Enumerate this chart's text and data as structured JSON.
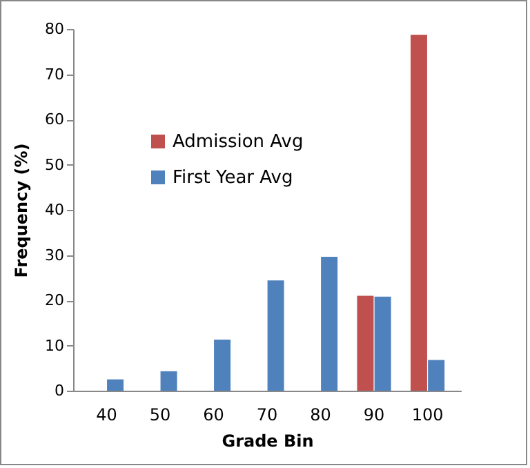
{
  "chart_data": {
    "type": "bar",
    "xlabel": "Grade Bin",
    "ylabel": "Frequency (%)",
    "categories": [
      "40",
      "50",
      "60",
      "70",
      "80",
      "90",
      "100"
    ],
    "series": [
      {
        "name": "Admission Avg",
        "color": "#c0504d",
        "values": [
          0,
          0,
          0,
          0,
          0,
          21.0,
          78.7
        ]
      },
      {
        "name": "First Year Avg",
        "color": "#4f81bd",
        "values": [
          2.5,
          4.3,
          11.3,
          24.4,
          29.6,
          20.8,
          6.8
        ]
      }
    ],
    "ylim": [
      0,
      80
    ],
    "yticks": [
      0,
      10,
      20,
      30,
      40,
      50,
      60,
      70,
      80
    ],
    "grid": false,
    "legend": "top left"
  }
}
